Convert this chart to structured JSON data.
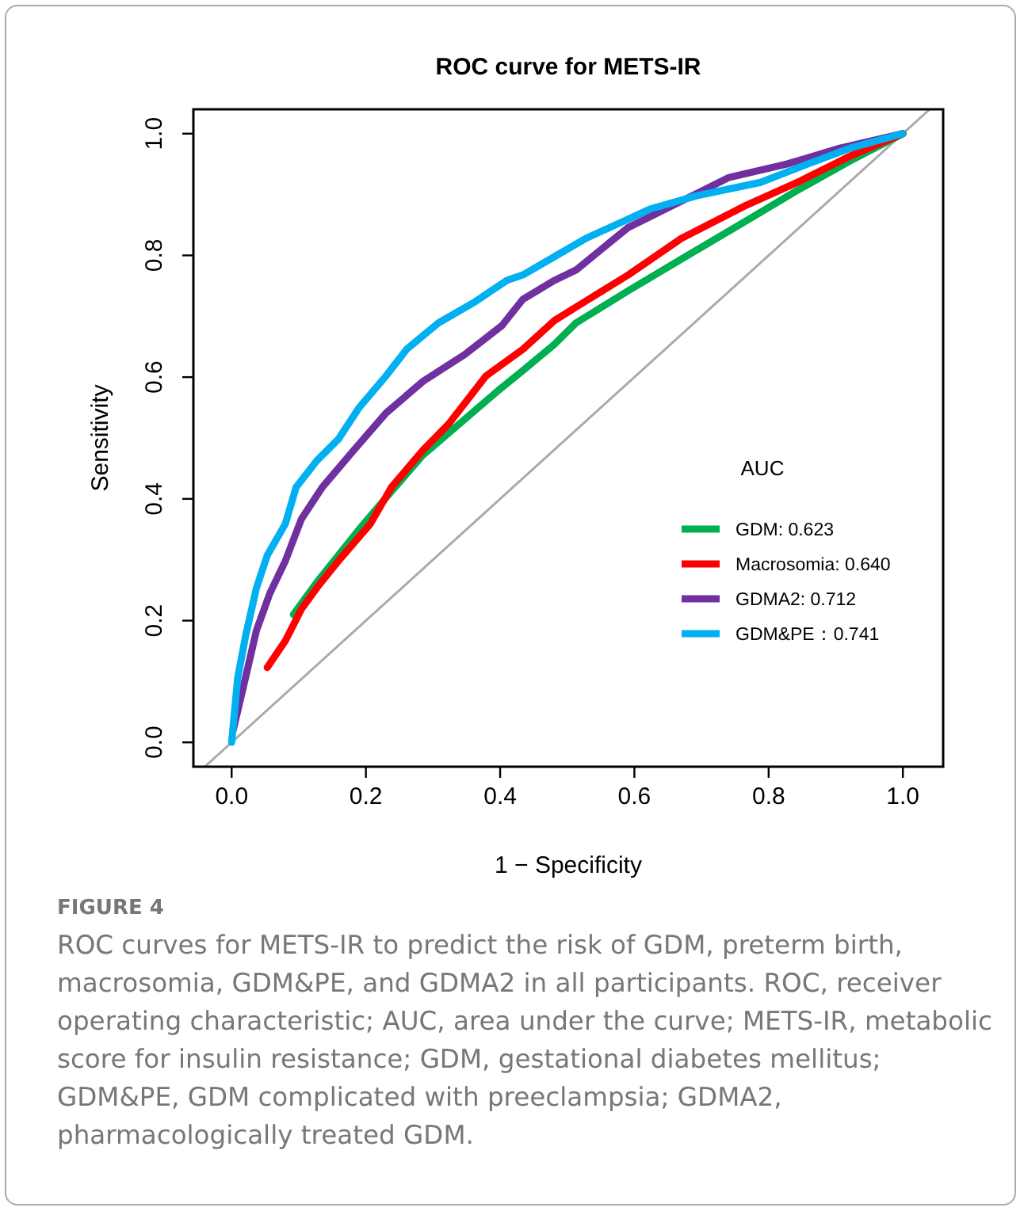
{
  "chart_data": {
    "type": "line",
    "title": "ROC curve for METS-IR",
    "xlabel": "1 − Specificity",
    "ylabel": "Sensitivity",
    "legend_title": "AUC",
    "xlim": [
      -0.057,
      1.06
    ],
    "ylim": [
      -0.04,
      1.04
    ],
    "xticks": [
      {
        "value": 0,
        "label": "0.0"
      },
      {
        "value": 0.2,
        "label": "0.2"
      },
      {
        "value": 0.4,
        "label": "0.4"
      },
      {
        "value": 0.6,
        "label": "0.6"
      },
      {
        "value": 0.8,
        "label": "0.8"
      },
      {
        "value": 1,
        "label": "1.0"
      }
    ],
    "yticks": [
      {
        "value": 0,
        "label": "0.0"
      },
      {
        "value": 0.2,
        "label": "0.2"
      },
      {
        "value": 0.4,
        "label": "0.4"
      },
      {
        "value": 0.6,
        "label": "0.6"
      },
      {
        "value": 0.8,
        "label": "0.8"
      },
      {
        "value": 1,
        "label": "1.0"
      }
    ],
    "grid": false,
    "legend": "right",
    "marker": "none",
    "line_style": "solid",
    "series": [
      {
        "color": "#aaaaaa",
        "x": [
          -0.04,
          1.04
        ],
        "values": [
          -0.04,
          1.04
        ]
      },
      {
        "name": "GDM: 0.623",
        "color": "#00b050",
        "x": [
          0.092,
          0.127,
          0.19,
          0.23,
          0.285,
          0.34,
          0.395,
          0.434,
          0.481,
          0.513,
          0.591,
          0.67,
          0.764,
          0.843,
          0.921,
          1
        ],
        "values": [
          0.21,
          0.263,
          0.35,
          0.402,
          0.472,
          0.524,
          0.576,
          0.611,
          0.654,
          0.689,
          0.742,
          0.794,
          0.855,
          0.907,
          0.955,
          1
        ]
      },
      {
        "name": "Macrosomia: 0.640",
        "color": "#ff0000",
        "x": [
          0.053,
          0.08,
          0.104,
          0.127,
          0.159,
          0.206,
          0.238,
          0.285,
          0.324,
          0.379,
          0.434,
          0.481,
          0.513,
          0.591,
          0.67,
          0.764,
          0.843,
          0.921,
          1
        ],
        "values": [
          0.123,
          0.167,
          0.219,
          0.254,
          0.298,
          0.358,
          0.419,
          0.48,
          0.524,
          0.602,
          0.646,
          0.693,
          0.715,
          0.768,
          0.828,
          0.881,
          0.92,
          0.963,
          1
        ]
      },
      {
        "name": "GDMA2: 0.712",
        "color": "#7030a0",
        "x": [
          0.002,
          0.017,
          0.037,
          0.057,
          0.08,
          0.104,
          0.135,
          0.182,
          0.23,
          0.285,
          0.347,
          0.403,
          0.434,
          0.481,
          0.513,
          0.591,
          0.67,
          0.741,
          0.827,
          0.906,
          1
        ],
        "values": [
          0.019,
          0.089,
          0.184,
          0.245,
          0.298,
          0.367,
          0.419,
          0.48,
          0.541,
          0.593,
          0.637,
          0.685,
          0.728,
          0.759,
          0.776,
          0.846,
          0.889,
          0.928,
          0.95,
          0.976,
          1
        ]
      },
      {
        "name": "GDM&PE：0.741",
        "color": "#00b0f0",
        "x": [
          0,
          0.009,
          0.021,
          0.037,
          0.053,
          0.08,
          0.096,
          0.127,
          0.159,
          0.19,
          0.23,
          0.261,
          0.308,
          0.363,
          0.41,
          0.434,
          0.481,
          0.528,
          0.623,
          0.693,
          0.788,
          0.858,
          0.921,
          1
        ],
        "values": [
          0,
          0.106,
          0.176,
          0.254,
          0.307,
          0.359,
          0.419,
          0.463,
          0.498,
          0.55,
          0.602,
          0.646,
          0.689,
          0.724,
          0.759,
          0.768,
          0.798,
          0.828,
          0.876,
          0.898,
          0.92,
          0.95,
          0.976,
          1
        ]
      }
    ],
    "annotations": [
      "FIGURE 4",
      "ROC curves for METS-IR to predict the risk of GDM, preterm birth, macrosomia, GDM&PE, and GDMA2 in all participants. ROC, receiver operating characteristic; AUC, area under the curve; METS-IR, metabolic score for insulin resistance; GDM, gestational diabetes mellitus; GDM&PE, GDM complicated with preeclampsia; GDMA2, pharmacologically treated GDM."
    ]
  }
}
